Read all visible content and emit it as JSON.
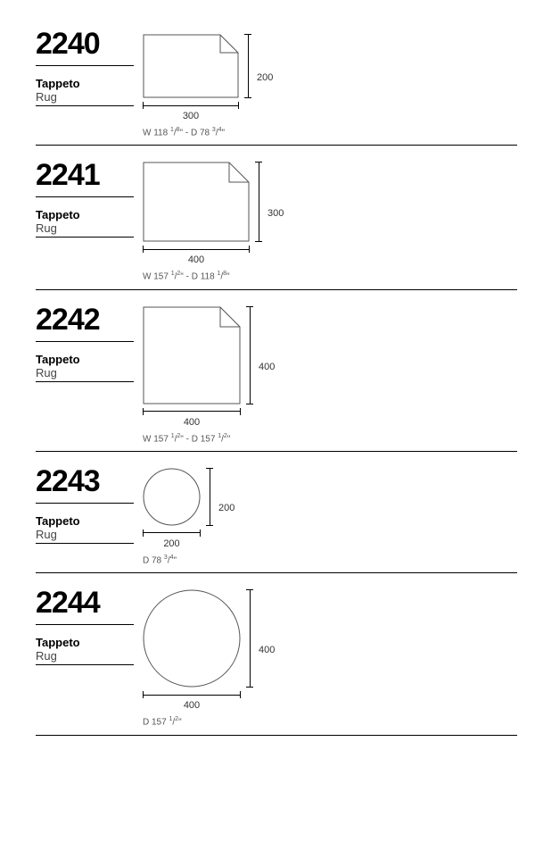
{
  "entries": [
    {
      "model": "2240",
      "name_it": "Tappeto",
      "name_en": "Rug",
      "shape": "rect-fold",
      "width_cm": "300",
      "height_cm": "200",
      "imperial_html": "W 118 <span class='frac'>1</span>/<span class='frac'>8</span>\" - D 78 <span class='frac'>3</span>/<span class='frac'>4</span>\"",
      "shape_w": 108,
      "shape_h": 72,
      "fold": 20,
      "top_pad": 8
    },
    {
      "model": "2241",
      "name_it": "Tappeto",
      "name_en": "Rug",
      "shape": "rect-fold",
      "width_cm": "400",
      "height_cm": "300",
      "imperial_html": "W 157 <span class='frac'>1</span>/<span class='frac'>2</span>\" - D 118 <span class='frac'>1</span>/<span class='frac'>8</span>\"",
      "shape_w": 120,
      "shape_h": 90,
      "fold": 22,
      "top_pad": 4
    },
    {
      "model": "2242",
      "name_it": "Tappeto",
      "name_en": "Rug",
      "shape": "rect-fold",
      "width_cm": "400",
      "height_cm": "400",
      "imperial_html": "W 157 <span class='frac'>1</span>/<span class='frac'>2</span>\" - D 157 <span class='frac'>1</span>/<span class='frac'>2</span>\"",
      "shape_w": 110,
      "shape_h": 110,
      "fold": 22,
      "top_pad": 4
    },
    {
      "model": "2243",
      "name_it": "Tappeto",
      "name_en": "Rug",
      "shape": "circle",
      "width_cm": "200",
      "height_cm": "200",
      "imperial_html": "D 78 <span class='frac'>3</span>/<span class='frac'>4</span>\"",
      "shape_w": 65,
      "shape_h": 65,
      "top_pad": 4
    },
    {
      "model": "2244",
      "name_it": "Tappeto",
      "name_en": "Rug",
      "shape": "circle",
      "width_cm": "400",
      "height_cm": "400",
      "imperial_html": "D 157 <span class='frac'>1</span>/<span class='frac'>2</span>\"",
      "shape_w": 110,
      "shape_h": 110,
      "top_pad": 4
    }
  ],
  "stroke": "#555555",
  "stroke_width": 1
}
